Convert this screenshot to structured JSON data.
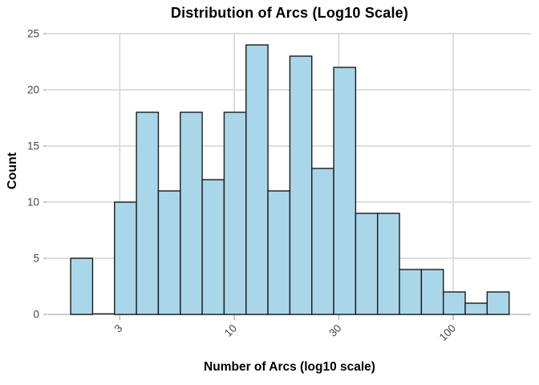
{
  "chart_data": {
    "type": "bar",
    "subtype": "histogram",
    "title": "Distribution of Arcs (Log10 Scale)",
    "xlabel": "Number of Arcs (log10 scale)",
    "ylabel": "Count",
    "x_scale": "log10",
    "x_ticks": [
      3,
      10,
      30,
      100
    ],
    "y_ticks": [
      0,
      5,
      10,
      15,
      20,
      25
    ],
    "ylim": [
      0,
      25
    ],
    "xlim_log10": [
      0.15,
      2.355
    ],
    "bins_log10_start": 0.253,
    "bins_log10_width": 0.1001,
    "counts": [
      5,
      0,
      10,
      18,
      11,
      18,
      12,
      18,
      24,
      11,
      23,
      13,
      22,
      9,
      9,
      4,
      4,
      2,
      1,
      2
    ],
    "grid": true,
    "legend": "none",
    "colors": {
      "bar_fill": "#A9D7E9",
      "bar_stroke": "#1A1A1A",
      "gridline": "#D9D9D9",
      "axis_line": "#C6C6C6",
      "tick_mark": "#BDBDBD",
      "tick_text": "#474747",
      "title_text": "#000000",
      "background": "#FFFFFF"
    }
  }
}
